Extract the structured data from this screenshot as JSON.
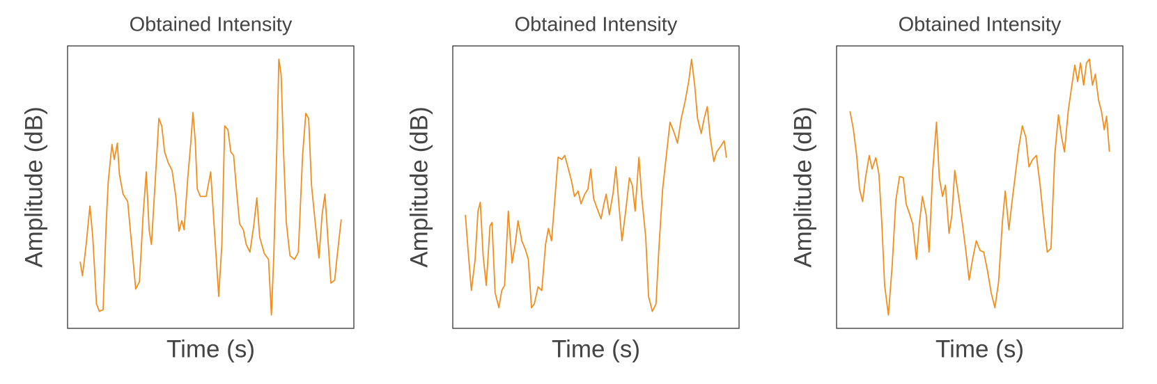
{
  "chart_data": [
    {
      "type": "line",
      "title": "Obtained Intensity",
      "x_label": "Time (s)",
      "y_label": "Amplitude (dB)",
      "color": "#f28e1e",
      "xlim": [
        0,
        100
      ],
      "ylim": [
        0,
        100
      ],
      "x": [
        4.4,
        5.2,
        6.5,
        7.8,
        8.8,
        10.1,
        11.1,
        12.4,
        13.5,
        14.2,
        15.5,
        16.3,
        17.4,
        18.1,
        19.4,
        21.0,
        22.5,
        23.8,
        25.1,
        26.4,
        27.5,
        28.5,
        29.3,
        30.6,
        31.9,
        32.9,
        33.9,
        35.2,
        36.5,
        37.8,
        38.9,
        39.9,
        40.7,
        42.0,
        43.0,
        43.8,
        44.6,
        45.3,
        46.4,
        48.4,
        50.0,
        51.3,
        52.8,
        53.9,
        54.9,
        56.0,
        57.0,
        58.0,
        59.1,
        60.1,
        61.4,
        62.4,
        63.7,
        65.0,
        66.1,
        67.1,
        68.7,
        70.2,
        71.2,
        72.0,
        73.1,
        73.8,
        74.6,
        75.4,
        76.4,
        77.7,
        79.3,
        80.6,
        82.1,
        83.2,
        84.2,
        85.2,
        86.5,
        87.8,
        88.9,
        89.9,
        90.9,
        92.0,
        93.3,
        94.3,
        95.6
      ],
      "values": [
        23.6,
        18.6,
        29.7,
        43.3,
        32.3,
        8.7,
        6.0,
        6.6,
        37.5,
        52.0,
        65.1,
        59.8,
        65.6,
        54.6,
        47.5,
        44.9,
        28.3,
        13.9,
        16.5,
        40.2,
        55.4,
        34.9,
        29.7,
        52.0,
        74.3,
        71.7,
        62.5,
        58.5,
        55.9,
        46.7,
        34.4,
        38.1,
        34.9,
        53.3,
        65.1,
        76.4,
        66.4,
        49.3,
        46.7,
        46.7,
        55.4,
        34.9,
        11.3,
        29.7,
        71.7,
        70.3,
        62.5,
        61.2,
        48.0,
        37.0,
        34.9,
        29.7,
        27.0,
        36.2,
        46.2,
        32.3,
        26.5,
        24.4,
        4.7,
        24.4,
        63.8,
        95.3,
        90.0,
        63.8,
        37.5,
        25.7,
        24.4,
        27.0,
        61.2,
        76.1,
        74.3,
        50.7,
        37.5,
        24.9,
        40.2,
        47.5,
        32.3,
        16.0,
        17.1,
        27.0,
        38.6
      ]
    },
    {
      "type": "line",
      "title": "Obtained Intensity",
      "x_label": "Time (s)",
      "y_label": "Amplitude (dB)",
      "color": "#f28e1e",
      "xlim": [
        0,
        100
      ],
      "ylim": [
        0,
        100
      ],
      "x": [
        4.4,
        5.4,
        6.5,
        7.8,
        8.8,
        9.6,
        10.6,
        11.7,
        13.0,
        13.7,
        14.8,
        16.1,
        17.1,
        18.1,
        19.4,
        20.7,
        21.8,
        22.8,
        24.1,
        25.4,
        26.4,
        27.5,
        28.5,
        29.8,
        31.1,
        32.4,
        33.4,
        34.5,
        35.8,
        36.8,
        38.1,
        39.1,
        40.2,
        41.5,
        42.5,
        43.8,
        44.8,
        46.1,
        47.2,
        48.2,
        49.2,
        50.3,
        51.8,
        52.8,
        53.6,
        54.7,
        56.0,
        57.0,
        58.0,
        59.1,
        60.4,
        61.7,
        62.7,
        63.7,
        65.0,
        66.1,
        67.4,
        68.4,
        69.7,
        71.0,
        72.0,
        73.3,
        74.6,
        75.9,
        77.2,
        78.5,
        79.8,
        81.1,
        82.4,
        83.4,
        84.5,
        85.5,
        86.8,
        87.8,
        88.9,
        89.9,
        91.2,
        92.2,
        93.5,
        94.8,
        95.6
      ],
      "values": [
        40.2,
        27.0,
        13.4,
        24.4,
        41.5,
        44.6,
        25.7,
        15.2,
        36.2,
        37.5,
        12.6,
        7.3,
        13.4,
        15.2,
        41.5,
        23.1,
        29.7,
        38.1,
        31.0,
        27.8,
        24.4,
        7.3,
        8.7,
        14.7,
        13.4,
        29.7,
        35.4,
        31.0,
        47.5,
        60.6,
        59.8,
        61.2,
        57.2,
        52.0,
        46.7,
        48.6,
        44.1,
        47.5,
        49.3,
        56.4,
        45.9,
        42.8,
        38.8,
        44.1,
        47.5,
        40.2,
        48.0,
        57.2,
        44.1,
        31.0,
        41.5,
        53.3,
        50.7,
        41.5,
        60.6,
        45.4,
        32.3,
        11.3,
        6.0,
        8.7,
        28.3,
        49.3,
        61.2,
        73.0,
        69.6,
        65.6,
        74.3,
        80.1,
        87.4,
        95.3,
        86.1,
        74.3,
        69.0,
        74.3,
        78.5,
        67.7,
        59.1,
        62.5,
        64.3,
        66.4,
        60.4
      ]
    },
    {
      "type": "line",
      "title": "Obtained Intensity",
      "x_label": "Time (s)",
      "y_label": "Amplitude (dB)",
      "color": "#f28e1e",
      "xlim": [
        0,
        100
      ],
      "ylim": [
        0,
        100
      ],
      "x": [
        4.7,
        5.9,
        7.0,
        8.0,
        9.1,
        10.1,
        11.4,
        12.4,
        13.7,
        14.8,
        15.8,
        16.8,
        18.1,
        19.4,
        20.7,
        22.0,
        23.3,
        24.3,
        25.6,
        26.6,
        27.9,
        28.9,
        30.0,
        31.3,
        32.3,
        33.6,
        34.9,
        35.9,
        37.0,
        38.0,
        39.3,
        40.3,
        41.3,
        42.6,
        43.9,
        45.2,
        46.3,
        47.5,
        48.8,
        50.1,
        51.4,
        52.7,
        54.0,
        55.3,
        56.6,
        57.9,
        58.9,
        60.2,
        61.2,
        62.3,
        63.6,
        64.9,
        66.1,
        67.2,
        68.5,
        69.8,
        71.1,
        72.4,
        73.6,
        74.9,
        76.2,
        77.5,
        78.6,
        79.6,
        80.9,
        82.2,
        83.2,
        84.2,
        85.2,
        86.3,
        87.3,
        88.3,
        89.4,
        90.4,
        91.5,
        92.5,
        93.5,
        94.3,
        95.3
      ],
      "values": [
        76.9,
        70.3,
        61.2,
        49.3,
        44.9,
        53.3,
        61.2,
        56.4,
        60.4,
        54.6,
        37.5,
        15.2,
        4.7,
        21.8,
        45.4,
        53.8,
        53.3,
        44.1,
        40.2,
        37.0,
        24.4,
        37.0,
        46.7,
        40.2,
        27.0,
        55.9,
        73.0,
        53.3,
        46.7,
        50.7,
        33.6,
        40.2,
        55.9,
        46.7,
        37.5,
        27.0,
        17.1,
        24.4,
        31.0,
        27.6,
        27.0,
        20.5,
        12.6,
        7.3,
        16.5,
        37.5,
        48.6,
        34.9,
        44.1,
        53.3,
        63.8,
        71.7,
        67.7,
        57.2,
        59.8,
        61.2,
        50.7,
        37.5,
        27.0,
        28.3,
        61.2,
        75.6,
        67.7,
        62.5,
        76.9,
        86.1,
        93.2,
        87.4,
        94.0,
        86.1,
        94.0,
        95.3,
        86.1,
        90.0,
        80.8,
        76.9,
        70.3,
        75.1,
        62.5
      ]
    }
  ]
}
